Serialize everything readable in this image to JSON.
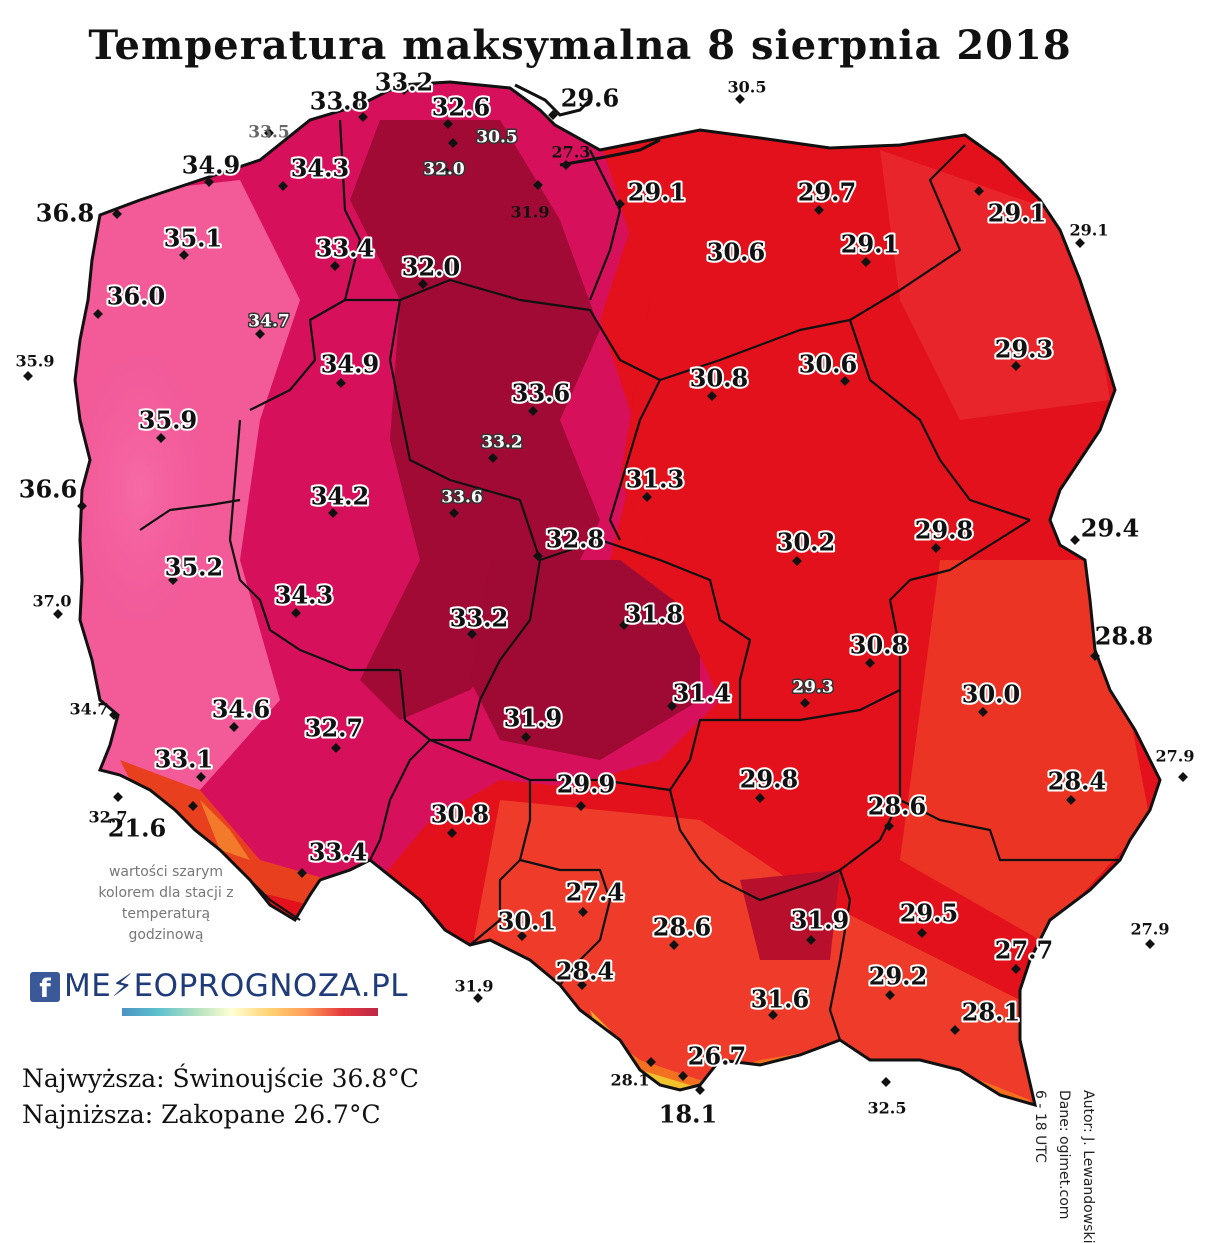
{
  "title": "Temperatura maksymalna 8 sierpnia 2018",
  "note": "wartości szarym kolorem dla stacji z temperaturą godzinową",
  "logo": {
    "fb_icon": "f",
    "text": "ME⚡EOPROGNOZA.PL"
  },
  "extremes": {
    "max": "Najwyższa: Świnoujście 36.8°C",
    "min": "Najniższa: Zakopane 26.7°C"
  },
  "credits": [
    "Autor: J. Lewandowski",
    "Dane: ogimet.com",
    "6 - 18 UTC"
  ],
  "colors": {
    "hot_pink": "#f25a98",
    "magenta": "#d7105c",
    "crimson": "#a10a35",
    "red": "#e3111b",
    "orange_red": "#ee3b2a",
    "mountain_yellow": "#f2c12e",
    "border": "#111111"
  },
  "stations": [
    {
      "v": "33.2",
      "style": "main"
    },
    {
      "v": "33.8",
      "style": "main"
    },
    {
      "v": "32.6",
      "style": "main"
    },
    {
      "v": "29.6",
      "style": "out"
    },
    {
      "v": "30.5",
      "style": "small-out"
    },
    {
      "v": "33.5",
      "style": "grey-out"
    },
    {
      "v": "30.5",
      "style": "grey"
    },
    {
      "v": "27.3",
      "style": "small-out"
    },
    {
      "v": "34.9",
      "style": "main"
    },
    {
      "v": "34.3",
      "style": "main"
    },
    {
      "v": "32.0",
      "style": "grey"
    },
    {
      "v": "29.1",
      "style": "main"
    },
    {
      "v": "29.7",
      "style": "main"
    },
    {
      "v": "31.9",
      "style": "small-out"
    },
    {
      "v": "36.8",
      "style": "out"
    },
    {
      "v": "29.1",
      "style": "main"
    },
    {
      "v": "29.1",
      "style": "small-out"
    },
    {
      "v": "35.1",
      "style": "main"
    },
    {
      "v": "33.4",
      "style": "main"
    },
    {
      "v": "30.6",
      "style": "main"
    },
    {
      "v": "29.1",
      "style": "main"
    },
    {
      "v": "32.0",
      "style": "main"
    },
    {
      "v": "36.0",
      "style": "main"
    },
    {
      "v": "34.7",
      "style": "grey"
    },
    {
      "v": "35.9",
      "style": "small-out"
    },
    {
      "v": "34.9",
      "style": "main"
    },
    {
      "v": "29.3",
      "style": "main"
    },
    {
      "v": "30.6",
      "style": "main"
    },
    {
      "v": "30.8",
      "style": "main"
    },
    {
      "v": "33.6",
      "style": "main"
    },
    {
      "v": "35.9",
      "style": "main"
    },
    {
      "v": "33.2",
      "style": "grey"
    },
    {
      "v": "31.3",
      "style": "main"
    },
    {
      "v": "36.6",
      "style": "out"
    },
    {
      "v": "34.2",
      "style": "main"
    },
    {
      "v": "33.6",
      "style": "grey"
    },
    {
      "v": "29.8",
      "style": "main"
    },
    {
      "v": "29.4",
      "style": "out"
    },
    {
      "v": "32.8",
      "style": "main"
    },
    {
      "v": "30.2",
      "style": "main"
    },
    {
      "v": "35.2",
      "style": "main"
    },
    {
      "v": "37.0",
      "style": "small-out"
    },
    {
      "v": "34.3",
      "style": "main"
    },
    {
      "v": "33.2",
      "style": "main"
    },
    {
      "v": "31.8",
      "style": "main"
    },
    {
      "v": "28.8",
      "style": "out"
    },
    {
      "v": "30.8",
      "style": "main"
    },
    {
      "v": "29.3",
      "style": "grey"
    },
    {
      "v": "30.0",
      "style": "main"
    },
    {
      "v": "34.6",
      "style": "main"
    },
    {
      "v": "34.7",
      "style": "small-out"
    },
    {
      "v": "32.7",
      "style": "main"
    },
    {
      "v": "31.9",
      "style": "main"
    },
    {
      "v": "31.4",
      "style": "main"
    },
    {
      "v": "33.1",
      "style": "main"
    },
    {
      "v": "29.9",
      "style": "main"
    },
    {
      "v": "29.8",
      "style": "main"
    },
    {
      "v": "27.9",
      "style": "small-out"
    },
    {
      "v": "28.4",
      "style": "main"
    },
    {
      "v": "32.7",
      "style": "small-out"
    },
    {
      "v": "21.6",
      "style": "out"
    },
    {
      "v": "30.8",
      "style": "main"
    },
    {
      "v": "28.6",
      "style": "main"
    },
    {
      "v": "33.4",
      "style": "main"
    },
    {
      "v": "27.4",
      "style": "main"
    },
    {
      "v": "30.1",
      "style": "main"
    },
    {
      "v": "28.6",
      "style": "main"
    },
    {
      "v": "31.9",
      "style": "main"
    },
    {
      "v": "29.5",
      "style": "main"
    },
    {
      "v": "27.9",
      "style": "small-out"
    },
    {
      "v": "27.7",
      "style": "main"
    },
    {
      "v": "31.9",
      "style": "small-out"
    },
    {
      "v": "28.4",
      "style": "main"
    },
    {
      "v": "29.2",
      "style": "main"
    },
    {
      "v": "31.6",
      "style": "main"
    },
    {
      "v": "28.1",
      "style": "main"
    },
    {
      "v": "26.7",
      "style": "main"
    },
    {
      "v": "28.1",
      "style": "small-out"
    },
    {
      "v": "18.1",
      "style": "out"
    },
    {
      "v": "32.5",
      "style": "small-out"
    }
  ]
}
